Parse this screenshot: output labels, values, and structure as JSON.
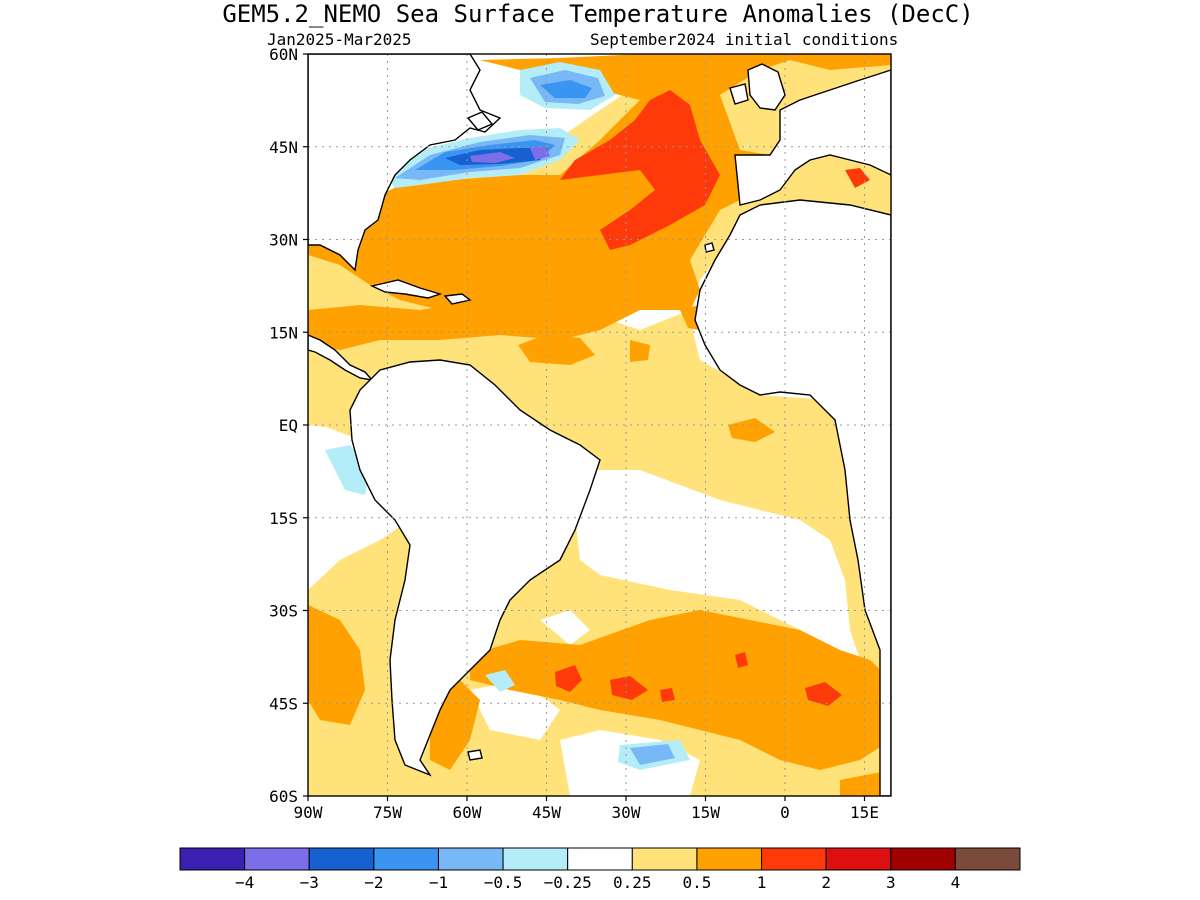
{
  "title": "GEM5.2_NEMO Sea Surface Temperature Anomalies (DecC)",
  "period": "Jan2025-Mar2025",
  "init": "September2024 initial conditions",
  "map": {
    "lon_range": [
      -90,
      20
    ],
    "lat_range": [
      -60,
      60
    ],
    "lat_ticks": [
      "60N",
      "45N",
      "30N",
      "15N",
      "EQ",
      "15S",
      "30S",
      "45S",
      "60S"
    ],
    "lon_ticks": [
      "90W",
      "75W",
      "60W",
      "45W",
      "30W",
      "15W",
      "0",
      "15E"
    ],
    "lat_values": [
      60,
      45,
      30,
      15,
      0,
      -15,
      -30,
      -45,
      -60
    ],
    "lon_values": [
      -90,
      -75,
      -60,
      -45,
      -30,
      -15,
      0,
      15
    ],
    "gridlines": "dotted"
  },
  "colorbar": {
    "colors": [
      "#3b1fb0",
      "#7b6ee8",
      "#1660d0",
      "#3a94f2",
      "#78b8f6",
      "#b4ecf8",
      "#ffffff",
      "#ffe27a",
      "#ffa100",
      "#ff3a0a",
      "#dc1010",
      "#a00000",
      "#7a4a3a"
    ],
    "labels": [
      "−4",
      "−3",
      "−2",
      "−1",
      "−0.5",
      "−0.25",
      "0.25",
      "0.5",
      "1",
      "2",
      "3",
      "4"
    ]
  }
}
